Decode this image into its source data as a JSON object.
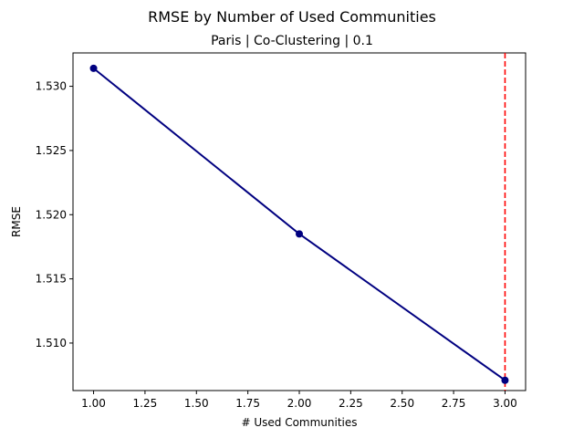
{
  "chart_data": {
    "type": "line",
    "title": "RMSE by Number of Used Communities",
    "subtitle": "Paris | Co-Clustering | 0.1",
    "xlabel": "# Used Communities",
    "ylabel": "RMSE",
    "xlim": [
      0.9,
      3.1
    ],
    "ylim": [
      1.5063,
      1.5326
    ],
    "xticks": [
      1.0,
      1.25,
      1.5,
      1.75,
      2.0,
      2.25,
      2.5,
      2.75,
      3.0
    ],
    "xtick_labels": [
      "1.00",
      "1.25",
      "1.50",
      "1.75",
      "2.00",
      "2.25",
      "2.50",
      "2.75",
      "3.00"
    ],
    "yticks": [
      1.51,
      1.515,
      1.52,
      1.525,
      1.53
    ],
    "ytick_labels": [
      "1.510",
      "1.515",
      "1.520",
      "1.525",
      "1.530"
    ],
    "grid": false,
    "series": [
      {
        "x": [
          1,
          2,
          3
        ],
        "values": [
          1.5314,
          1.5185,
          1.5071
        ],
        "color": "#000080",
        "marker": "circle"
      }
    ],
    "reference_lines": [
      {
        "orientation": "vertical",
        "x": 3,
        "style": "dashed",
        "color": "#ff0000"
      }
    ]
  }
}
